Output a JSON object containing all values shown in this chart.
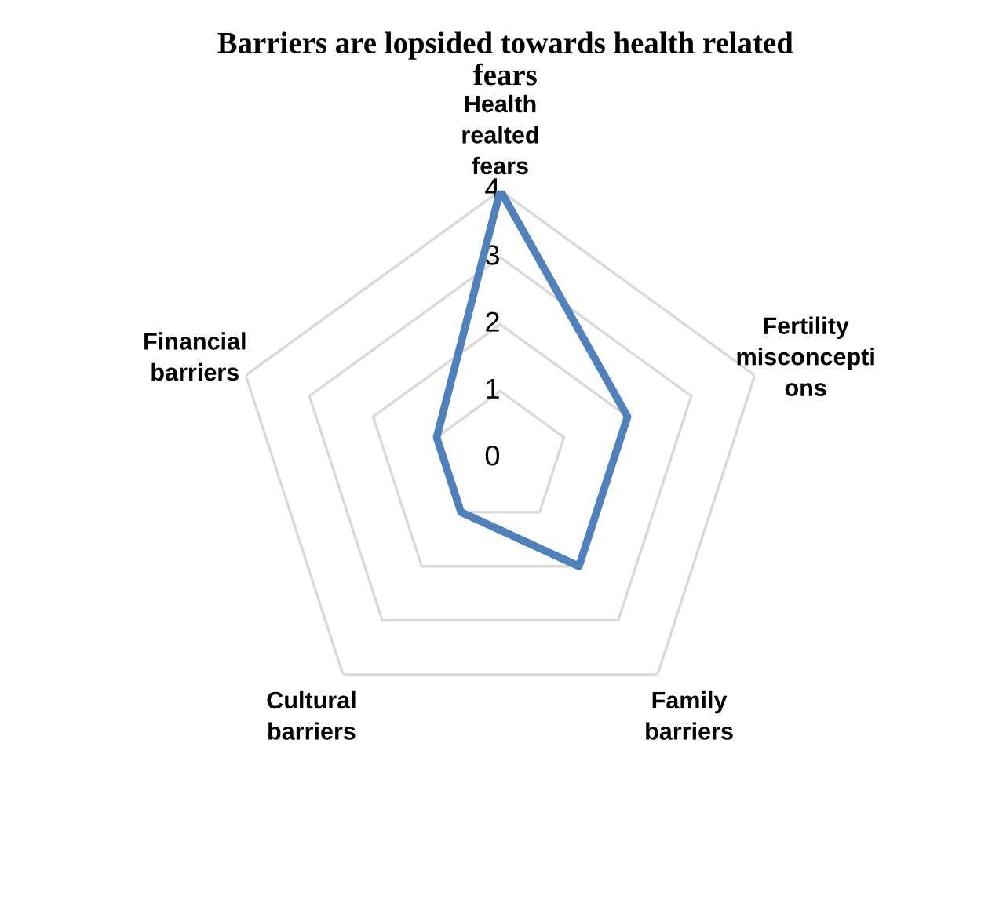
{
  "chart_data": {
    "type": "radar",
    "title": "Barriers are lopsided towards health related\nfears",
    "categories": [
      "Health\nrealted\nfears",
      "Fertility\nmisconcepti\nons",
      "Family\nbarriers",
      "Cultural\nbarriers",
      "Financial\nbarriers"
    ],
    "series": [
      {
        "color": "#4f81bd",
        "values": [
          4,
          2,
          2,
          1,
          1
        ]
      }
    ],
    "ylim": [
      0,
      4
    ],
    "yticks": [
      0,
      1,
      2,
      3,
      4
    ],
    "grid": true,
    "legend": false
  }
}
